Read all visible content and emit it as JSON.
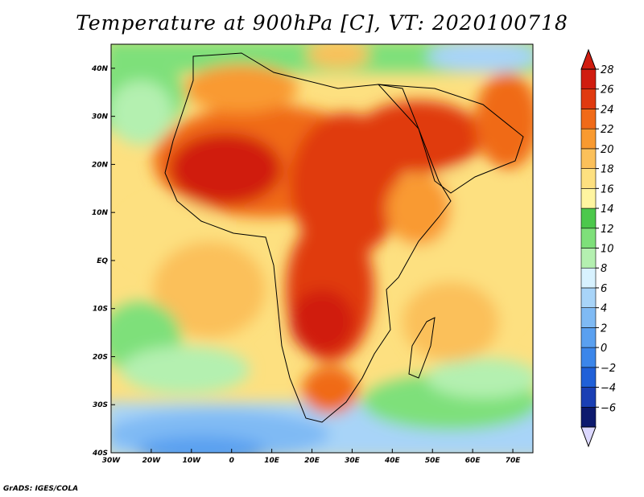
{
  "title": "Temperature at 900hPa [C], VT: 2020100718",
  "credit": "GrADS: IGES/COLA",
  "map": {
    "lon_range": [
      -30,
      75
    ],
    "lat_range": [
      -40,
      45
    ],
    "x_ticks": [
      {
        "lon": -30,
        "label": "30W"
      },
      {
        "lon": -20,
        "label": "20W"
      },
      {
        "lon": -10,
        "label": "10W"
      },
      {
        "lon": 0,
        "label": "0"
      },
      {
        "lon": 10,
        "label": "10E"
      },
      {
        "lon": 20,
        "label": "20E"
      },
      {
        "lon": 30,
        "label": "30E"
      },
      {
        "lon": 40,
        "label": "40E"
      },
      {
        "lon": 50,
        "label": "50E"
      },
      {
        "lon": 60,
        "label": "60E"
      },
      {
        "lon": 70,
        "label": "70E"
      }
    ],
    "y_ticks": [
      {
        "lat": 40,
        "label": "40N"
      },
      {
        "lat": 30,
        "label": "30N"
      },
      {
        "lat": 20,
        "label": "20N"
      },
      {
        "lat": 10,
        "label": "10N"
      },
      {
        "lat": 0,
        "label": "EQ"
      },
      {
        "lat": -10,
        "label": "10S"
      },
      {
        "lat": -20,
        "label": "20S"
      },
      {
        "lat": -30,
        "label": "30S"
      },
      {
        "lat": -40,
        "label": "40S"
      }
    ]
  },
  "colorbar": {
    "colors": [
      "#0d1a6e",
      "#1a3fb4",
      "#2060d8",
      "#3c86ea",
      "#5aa0f0",
      "#7fbaf4",
      "#a8d4f8",
      "#d8f2ff",
      "#b4f0b0",
      "#7ee07a",
      "#4cc84c",
      "#fff5a0",
      "#fde080",
      "#fbc05a",
      "#f99a30",
      "#f06a18",
      "#e03a10",
      "#d01c10"
    ],
    "labels": [
      "28",
      "26",
      "24",
      "22",
      "20",
      "18",
      "16",
      "14",
      "12",
      "10",
      "8",
      "6",
      "4",
      "2",
      "0",
      "−2",
      "−4",
      "−6"
    ]
  }
}
